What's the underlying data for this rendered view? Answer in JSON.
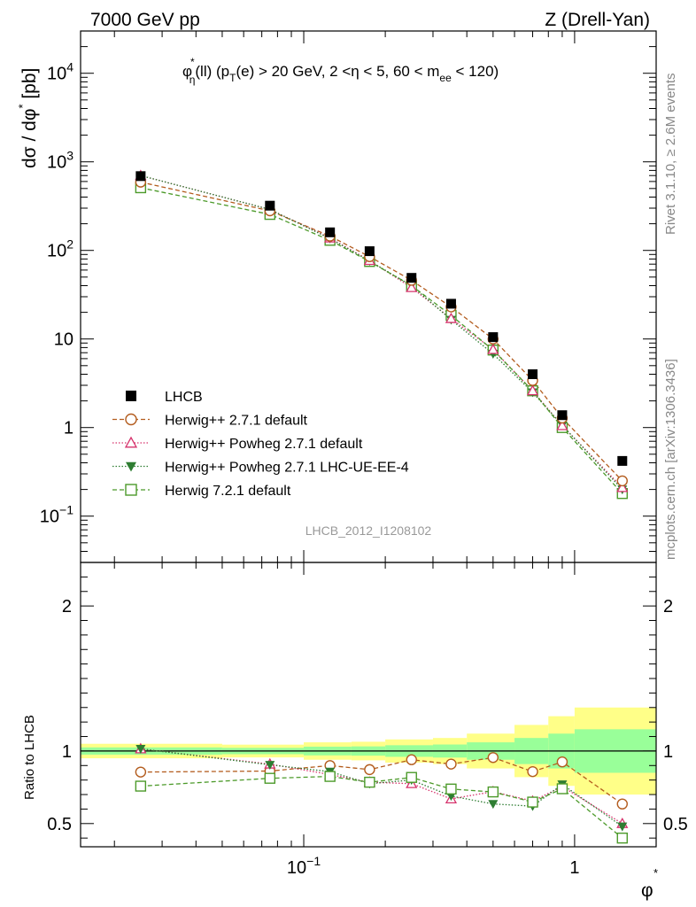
{
  "header": {
    "left": "7000 GeV pp",
    "right": "Z (Drell-Yan)"
  },
  "side_labels": {
    "top": "Rivet 3.1.10, ≥ 2.6M events",
    "bottom": "mcplots.cern.ch [arXiv:1306.3436]"
  },
  "analysis_id": "LHCB_2012_I1208102",
  "chart_data": [
    {
      "type": "scatter",
      "title": "φ*η(ll) (pT(e) > 20 GeV, 2 <η < 5, 60 < mee < 120)",
      "xlabel": "φ*",
      "ylabel": "dσ / dφ* [pb]",
      "xscale": "log",
      "yscale": "log",
      "xlim": [
        0.015,
        2.0
      ],
      "ylim": [
        0.03,
        30000
      ],
      "x_tick_labels": [
        "10⁻¹",
        "1"
      ],
      "y_tick_labels": [
        "10⁻¹",
        "1",
        "10",
        "10²",
        "10³",
        "10⁴"
      ],
      "legend_position": "lower-left",
      "x": [
        0.025,
        0.075,
        0.125,
        0.175,
        0.25,
        0.35,
        0.5,
        0.7,
        0.9,
        1.5
      ],
      "series": [
        {
          "name": "LHCB",
          "color": "#000000",
          "marker": "filled-square",
          "line": "none",
          "values": [
            690,
            320,
            160,
            98,
            49,
            25,
            10.5,
            4.0,
            1.38,
            0.42
          ]
        },
        {
          "name": "Herwig++ 2.7.1 default",
          "color": "#b35c1e",
          "marker": "open-circle",
          "line": "dashed",
          "values": [
            590,
            280,
            145,
            85,
            46,
            23,
            10,
            3.4,
            1.28,
            0.25
          ]
        },
        {
          "name": "Herwig++ Powheg 2.7.1 default",
          "color": "#d6336c",
          "marker": "open-triangle",
          "line": "dotted",
          "values": [
            700,
            290,
            138,
            77,
            38,
            17,
            7.6,
            2.6,
            1.05,
            0.21
          ]
        },
        {
          "name": "Herwig++ Powheg 2.7.1 LHC-UE-EE-4",
          "color": "#2e7d32",
          "marker": "filled-triangle-down",
          "line": "dotted",
          "values": [
            700,
            290,
            136,
            76,
            40,
            16.5,
            6.8,
            2.5,
            1.06,
            0.2
          ]
        },
        {
          "name": "Herwig 7.2.1 default",
          "color": "#4c9a2a",
          "marker": "open-square",
          "line": "dashed",
          "values": [
            510,
            255,
            130,
            75,
            40,
            18.5,
            7.5,
            2.6,
            1.0,
            0.18
          ]
        }
      ]
    },
    {
      "type": "scatter",
      "xlabel": "φ*",
      "ylabel": "Ratio to LHCB",
      "xscale": "log",
      "xlim": [
        0.015,
        2.0
      ],
      "ylim": [
        0.34,
        2.3
      ],
      "y_tick_labels": [
        "0.5",
        "1",
        "2"
      ],
      "x": [
        0.025,
        0.075,
        0.125,
        0.175,
        0.25,
        0.35,
        0.5,
        0.7,
        0.9,
        1.5
      ],
      "x_edges": [
        0.0,
        0.05,
        0.1,
        0.15,
        0.2,
        0.3,
        0.4,
        0.6,
        0.8,
        1.0,
        2.0
      ],
      "band_1sigma": [
        0.025,
        0.022,
        0.03,
        0.032,
        0.04,
        0.045,
        0.06,
        0.09,
        0.12,
        0.15
      ],
      "band_2sigma": [
        0.05,
        0.044,
        0.06,
        0.064,
        0.08,
        0.09,
        0.12,
        0.18,
        0.24,
        0.3
      ],
      "series": [
        {
          "name": "Herwig++ 2.7.1 default",
          "color": "#b35c1e",
          "marker": "open-circle",
          "line": "dashed",
          "values": [
            0.855,
            0.862,
            0.9,
            0.872,
            0.94,
            0.91,
            0.955,
            0.858,
            0.925,
            0.635
          ]
        },
        {
          "name": "Herwig++ Powheg 2.7.1 default",
          "color": "#d6336c",
          "marker": "open-triangle",
          "line": "dotted",
          "values": [
            1.015,
            0.91,
            0.838,
            0.785,
            0.775,
            0.67,
            0.72,
            0.655,
            0.755,
            0.5
          ]
        },
        {
          "name": "Herwig++ Powheg 2.7.1 LHC-UE-EE-4",
          "color": "#2e7d32",
          "marker": "filled-triangle-down",
          "line": "dotted",
          "values": [
            1.015,
            0.905,
            0.858,
            0.775,
            0.8,
            0.69,
            0.635,
            0.62,
            0.77,
            0.48
          ]
        },
        {
          "name": "Herwig 7.2.1 default",
          "color": "#4c9a2a",
          "marker": "open-square",
          "line": "dashed",
          "values": [
            0.758,
            0.812,
            0.825,
            0.785,
            0.818,
            0.738,
            0.718,
            0.648,
            0.74,
            0.4
          ]
        }
      ]
    }
  ]
}
